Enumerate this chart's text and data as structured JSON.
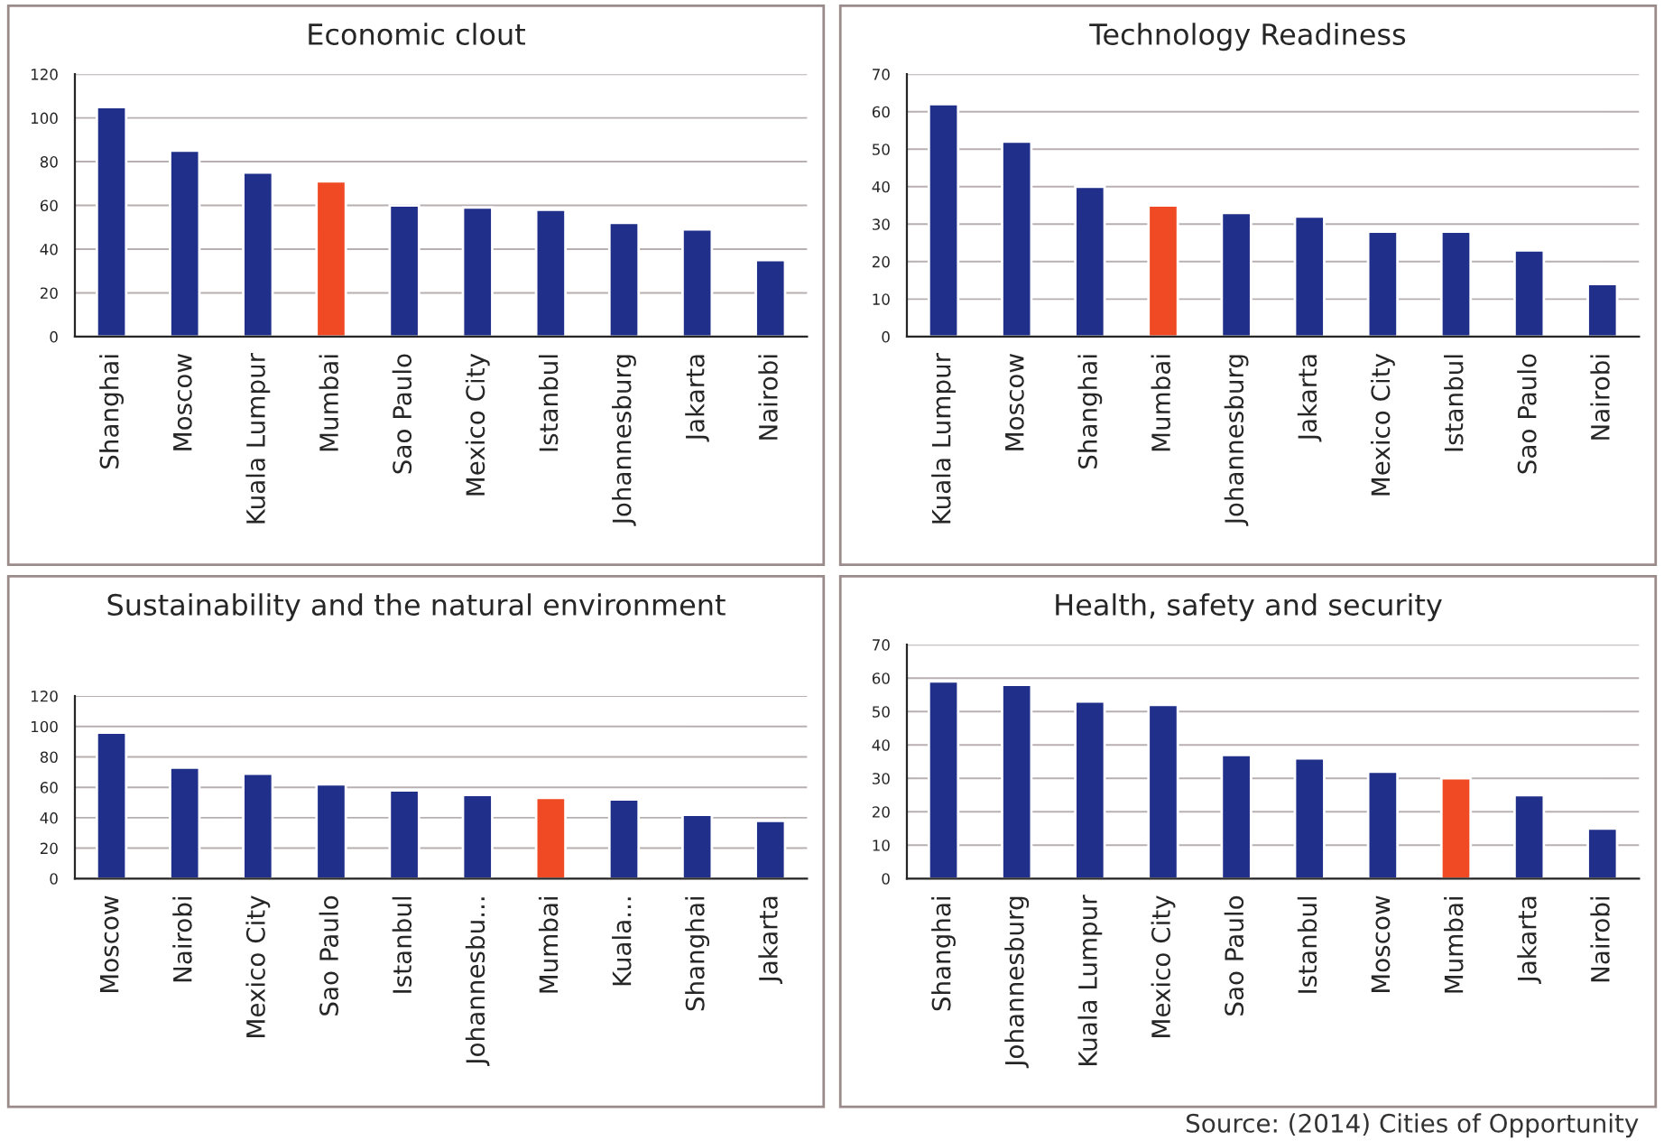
{
  "chart_data": [
    {
      "type": "bar",
      "title": "Economic clout",
      "categories": [
        "Shanghai",
        "Moscow",
        "Kuala Lumpur",
        "Mumbai",
        "Sao Paulo",
        "Mexico City",
        "Istanbul",
        "Johannesburg",
        "Jakarta",
        "Nairobi"
      ],
      "values": [
        105,
        85,
        75,
        71,
        60,
        59,
        58,
        52,
        49,
        35
      ],
      "colors": [
        "#1f2f8a",
        "#1f2f8a",
        "#1f2f8a",
        "#f04a24",
        "#1f2f8a",
        "#1f2f8a",
        "#1f2f8a",
        "#1f2f8a",
        "#1f2f8a",
        "#1f2f8a"
      ],
      "ylim": [
        0,
        120
      ],
      "yticks": [
        0,
        20,
        40,
        60,
        80,
        100,
        120
      ],
      "grid": "y"
    },
    {
      "type": "bar",
      "title": "Technology Readiness",
      "categories": [
        "Kuala Lumpur",
        "Moscow",
        "Shanghai",
        "Mumbai",
        "Johannesburg",
        "Jakarta",
        "Mexico City",
        "Istanbul",
        "Sao Paulo",
        "Nairobi"
      ],
      "values": [
        62,
        52,
        40,
        35,
        33,
        32,
        28,
        28,
        23,
        14
      ],
      "colors": [
        "#1f2f8a",
        "#1f2f8a",
        "#1f2f8a",
        "#f04a24",
        "#1f2f8a",
        "#1f2f8a",
        "#1f2f8a",
        "#1f2f8a",
        "#1f2f8a",
        "#1f2f8a"
      ],
      "ylim": [
        0,
        70
      ],
      "yticks": [
        0,
        10,
        20,
        30,
        40,
        50,
        60,
        70
      ],
      "grid": "y"
    },
    {
      "type": "bar",
      "title": "Sustainability and the natural environment",
      "categories": [
        "Moscow",
        "Nairobi",
        "Mexico City",
        "Sao Paulo",
        "Istanbul",
        "Johannesbu...",
        "Mumbai",
        "Kuala...",
        "Shanghai",
        "Jakarta"
      ],
      "values": [
        96,
        73,
        69,
        62,
        58,
        55,
        53,
        52,
        42,
        38
      ],
      "colors": [
        "#1f2f8a",
        "#1f2f8a",
        "#1f2f8a",
        "#1f2f8a",
        "#1f2f8a",
        "#1f2f8a",
        "#f04a24",
        "#1f2f8a",
        "#1f2f8a",
        "#1f2f8a"
      ],
      "ylim": [
        0,
        120
      ],
      "yticks": [
        0,
        20,
        40,
        60,
        80,
        100,
        120
      ],
      "grid": "y"
    },
    {
      "type": "bar",
      "title": "Health, safety and security",
      "categories": [
        "Shanghai",
        "Johannesburg",
        "Kuala Lumpur",
        "Mexico City",
        "Sao Paulo",
        "Istanbul",
        "Moscow",
        "Mumbai",
        "Jakarta",
        "Nairobi"
      ],
      "values": [
        59,
        58,
        53,
        52,
        37,
        36,
        32,
        30,
        25,
        15
      ],
      "colors": [
        "#1f2f8a",
        "#1f2f8a",
        "#1f2f8a",
        "#1f2f8a",
        "#1f2f8a",
        "#1f2f8a",
        "#1f2f8a",
        "#f04a24",
        "#1f2f8a",
        "#1f2f8a"
      ],
      "ylim": [
        0,
        70
      ],
      "yticks": [
        0,
        10,
        20,
        30,
        40,
        50,
        60,
        70
      ],
      "grid": "y",
      "annotations": [
        "Source: (2014) Cities of Opportunity"
      ]
    }
  ]
}
